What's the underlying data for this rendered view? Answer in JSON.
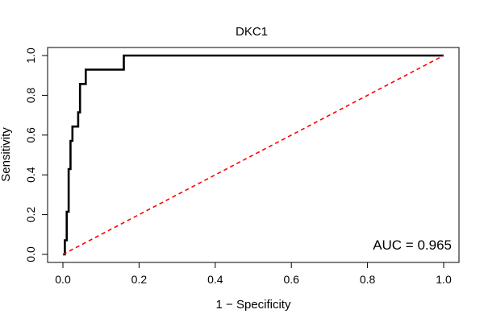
{
  "chart_data": {
    "type": "line",
    "title": "DKC1",
    "xlabel": "1 − Specificity",
    "ylabel": "Sensitivity",
    "xlim": [
      0,
      1
    ],
    "ylim": [
      0,
      1
    ],
    "xticks": [
      0.0,
      0.2,
      0.4,
      0.6,
      0.8,
      1.0
    ],
    "xtick_labels": [
      "0.0",
      "0.2",
      "0.4",
      "0.6",
      "0.8",
      "1.0"
    ],
    "yticks": [
      0.0,
      0.2,
      0.4,
      0.6,
      0.8,
      1.0
    ],
    "ytick_labels": [
      "0.0",
      "0.2",
      "0.4",
      "0.6",
      "0.8",
      "1.0"
    ],
    "grid": false,
    "series": [
      {
        "color": "#000000",
        "style": "solid",
        "x": [
          0.0,
          0.005,
          0.005,
          0.01,
          0.01,
          0.015,
          0.015,
          0.02,
          0.02,
          0.025,
          0.025,
          0.04,
          0.04,
          0.045,
          0.045,
          0.055,
          0.055,
          0.06,
          0.06,
          0.16,
          0.16,
          1.0
        ],
        "y": [
          0.0,
          0.0,
          0.071,
          0.071,
          0.214,
          0.214,
          0.429,
          0.429,
          0.571,
          0.571,
          0.643,
          0.643,
          0.714,
          0.714,
          0.857,
          0.857,
          0.857,
          0.857,
          0.929,
          0.929,
          1.0,
          1.0
        ]
      },
      {
        "color": "#ff0000",
        "style": "dashed",
        "x": [
          0.0,
          1.0
        ],
        "y": [
          0.0,
          1.0
        ]
      }
    ],
    "annotations": [
      {
        "text": "AUC = 0.965",
        "position": "bottom-right"
      }
    ]
  }
}
